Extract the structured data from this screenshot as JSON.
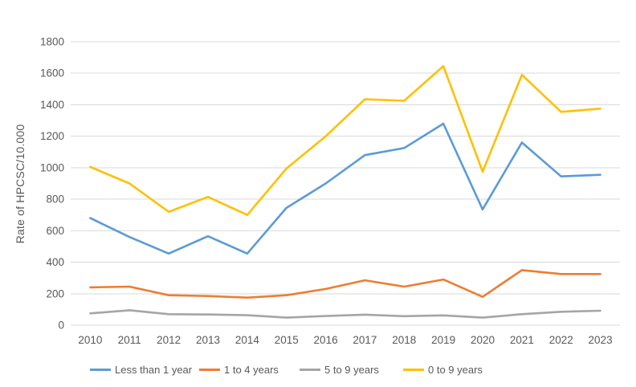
{
  "chart_data": {
    "type": "line",
    "title": "",
    "xlabel": "",
    "ylabel": "Rate of HPCSC/10.000",
    "categories": [
      "2010",
      "2011",
      "2012",
      "2013",
      "2014",
      "2015",
      "2016",
      "2017",
      "2018",
      "2019",
      "2020",
      "2021",
      "2022",
      "2023"
    ],
    "y_ticks": [
      0,
      200,
      400,
      600,
      800,
      1000,
      1200,
      1400,
      1600,
      1800
    ],
    "ylim": [
      0,
      1800
    ],
    "grid": true,
    "legend_position": "bottom",
    "series": [
      {
        "name": "Less than 1 year",
        "color": "#5B9BD5",
        "values": [
          680,
          560,
          455,
          565,
          455,
          745,
          900,
          1080,
          1125,
          1280,
          735,
          1160,
          945,
          955
        ]
      },
      {
        "name": "1 to 4 years",
        "color": "#ED7D31",
        "values": [
          240,
          245,
          190,
          185,
          175,
          190,
          230,
          285,
          245,
          290,
          180,
          350,
          325,
          325
        ]
      },
      {
        "name": "5 to 9 years",
        "color": "#A5A5A5",
        "values": [
          75,
          95,
          70,
          68,
          63,
          48,
          58,
          67,
          57,
          62,
          48,
          70,
          85,
          92
        ]
      },
      {
        "name": "0 to 9 years",
        "color": "#FFC000",
        "values": [
          1005,
          900,
          720,
          815,
          700,
          995,
          1200,
          1435,
          1425,
          1645,
          975,
          1590,
          1355,
          1375
        ]
      }
    ],
    "colors": {
      "gridline": "#D9D9D9",
      "tick_text": "#595959",
      "background": "#FFFFFF"
    }
  }
}
